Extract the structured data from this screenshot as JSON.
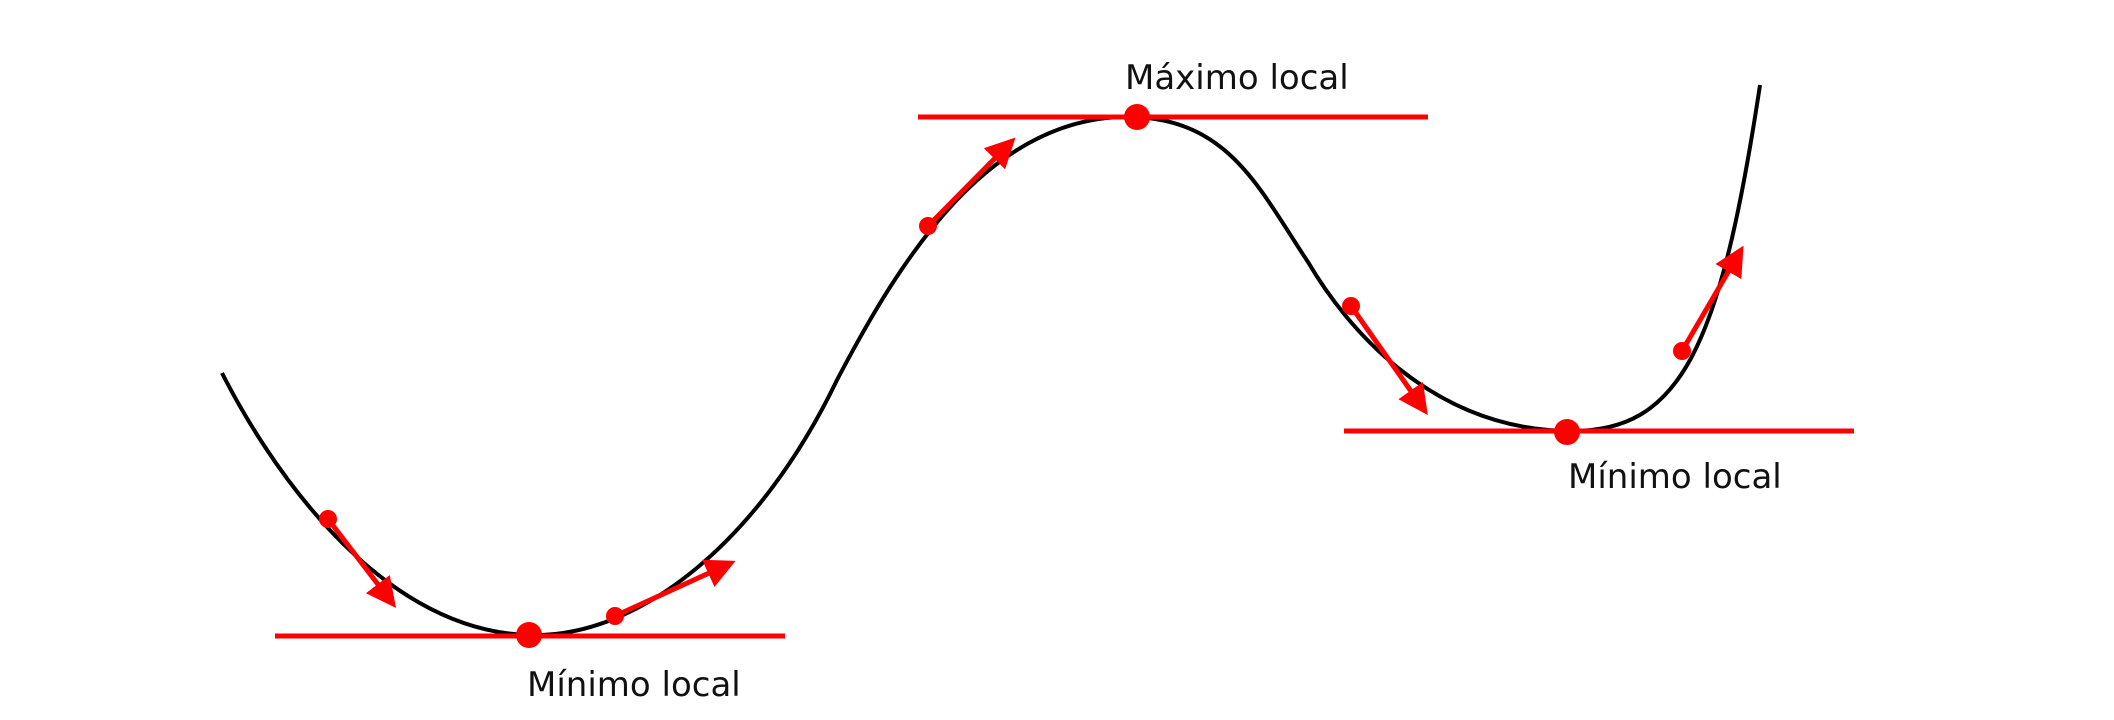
{
  "labels": {
    "max": "Máximo local",
    "min_left": "Mínimo local",
    "min_right": "Mínimo local"
  },
  "colors": {
    "curve": "#000000",
    "accent": "#ff0000",
    "background": "#ffffff",
    "text": "#111111"
  }
}
